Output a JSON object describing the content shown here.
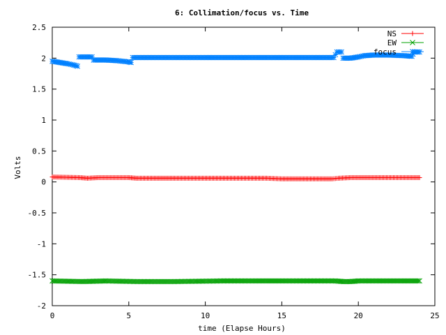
{
  "chart_data": {
    "type": "scatter",
    "title": "6: Collimation/focus vs. Time",
    "xlabel": "time (Elapse Hours)",
    "ylabel": "Volts",
    "xlim": [
      0,
      25
    ],
    "ylim": [
      -2,
      2.5
    ],
    "xticks": [
      0,
      5,
      10,
      15,
      20,
      25
    ],
    "yticks": [
      -2,
      -1.5,
      -1,
      -0.5,
      0,
      0.5,
      1,
      1.5,
      2,
      2.5
    ],
    "ytick_labels": [
      "-2",
      "-1.5",
      "-1",
      "-0.5",
      "0",
      "0.5",
      "1",
      "1.5",
      "2",
      "2.5"
    ],
    "legend_position": "top-right",
    "grid": false,
    "series": [
      {
        "name": "NS",
        "marker": "plus",
        "color": "#ff0000",
        "points": [
          [
            0,
            0.08
          ],
          [
            1.8,
            0.07
          ],
          [
            2.3,
            0.06
          ],
          [
            3,
            0.07
          ],
          [
            5,
            0.07
          ],
          [
            5.5,
            0.06
          ],
          [
            8,
            0.06
          ],
          [
            12,
            0.06
          ],
          [
            14,
            0.06
          ],
          [
            15,
            0.05
          ],
          [
            18.3,
            0.05
          ],
          [
            18.7,
            0.06
          ],
          [
            19.5,
            0.07
          ],
          [
            24,
            0.07
          ]
        ]
      },
      {
        "name": "EW",
        "marker": "cross",
        "color": "#00a000",
        "points": [
          [
            0,
            -1.6
          ],
          [
            2,
            -1.61
          ],
          [
            3.5,
            -1.6
          ],
          [
            5.5,
            -1.61
          ],
          [
            8,
            -1.61
          ],
          [
            11,
            -1.6
          ],
          [
            18.5,
            -1.6
          ],
          [
            19,
            -1.61
          ],
          [
            19.5,
            -1.61
          ],
          [
            20,
            -1.6
          ],
          [
            24,
            -1.6
          ]
        ]
      },
      {
        "name": "focus",
        "marker": "star",
        "color": "#0080ff",
        "points": [
          [
            0,
            1.95
          ],
          [
            0.5,
            1.93
          ],
          [
            1,
            1.91
          ],
          [
            1.4,
            1.89
          ],
          [
            1.65,
            1.87
          ],
          [
            1.75,
            2.02
          ],
          [
            2,
            2.02
          ],
          [
            2.6,
            2.02
          ],
          [
            2.7,
            1.97
          ],
          [
            3.5,
            1.97
          ],
          [
            4.2,
            1.96
          ],
          [
            4.6,
            1.95
          ],
          [
            5,
            1.94
          ],
          [
            5.15,
            1.93
          ],
          [
            5.25,
            2.01
          ],
          [
            7,
            2.01
          ],
          [
            10,
            2.01
          ],
          [
            15,
            2.01
          ],
          [
            18.4,
            2.01
          ],
          [
            18.6,
            2.1
          ],
          [
            18.9,
            2.1
          ],
          [
            19,
            2.0
          ],
          [
            19.5,
            2.0
          ],
          [
            20,
            2.02
          ],
          [
            20.4,
            2.04
          ],
          [
            21,
            2.05
          ],
          [
            22,
            2.05
          ],
          [
            23,
            2.04
          ],
          [
            23.5,
            2.03
          ],
          [
            23.65,
            2.1
          ],
          [
            24,
            2.1
          ]
        ]
      }
    ]
  }
}
